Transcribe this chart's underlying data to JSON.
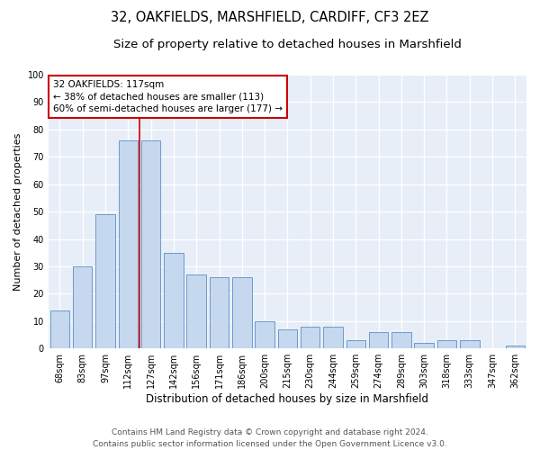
{
  "title": "32, OAKFIELDS, MARSHFIELD, CARDIFF, CF3 2EZ",
  "subtitle": "Size of property relative to detached houses in Marshfield",
  "xlabel": "Distribution of detached houses by size in Marshfield",
  "ylabel": "Number of detached properties",
  "categories": [
    "68sqm",
    "83sqm",
    "97sqm",
    "112sqm",
    "127sqm",
    "142sqm",
    "156sqm",
    "171sqm",
    "186sqm",
    "200sqm",
    "215sqm",
    "230sqm",
    "244sqm",
    "259sqm",
    "274sqm",
    "289sqm",
    "303sqm",
    "318sqm",
    "333sqm",
    "347sqm",
    "362sqm"
  ],
  "values": [
    14,
    30,
    49,
    76,
    76,
    35,
    27,
    26,
    26,
    10,
    7,
    8,
    8,
    3,
    6,
    6,
    2,
    3,
    3,
    0,
    1
  ],
  "bar_color": "#c5d8ee",
  "bar_edge_color": "#5b8fc9",
  "marker_label": "32 OAKFIELDS: 117sqm",
  "annotation_line1": "← 38% of detached houses are smaller (113)",
  "annotation_line2": "60% of semi-detached houses are larger (177) →",
  "vline_color": "#cc0000",
  "box_edge_color": "#cc0000",
  "bg_color": "#e8eef8",
  "grid_color": "#ffffff",
  "footer_line1": "Contains HM Land Registry data © Crown copyright and database right 2024.",
  "footer_line2": "Contains public sector information licensed under the Open Government Licence v3.0.",
  "ylim": [
    0,
    100
  ],
  "title_fontsize": 10.5,
  "subtitle_fontsize": 9.5,
  "xlabel_fontsize": 8.5,
  "ylabel_fontsize": 8,
  "tick_fontsize": 7,
  "footer_fontsize": 6.5,
  "annotation_fontsize": 7.5
}
